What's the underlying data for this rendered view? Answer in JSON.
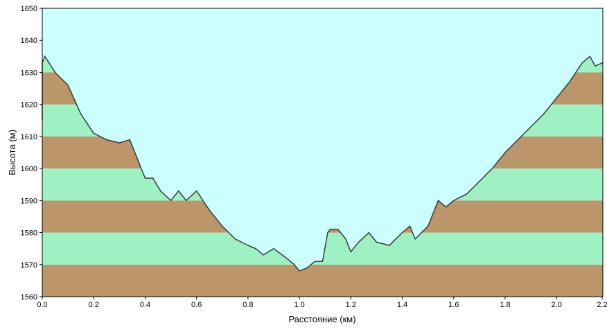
{
  "chart_data": {
    "type": "area",
    "title": "",
    "xlabel": "Расстояние  (км)",
    "ylabel": "Высота (м)",
    "xlim": [
      0,
      2.18
    ],
    "ylim": [
      1560,
      1650
    ],
    "x_ticks": [
      "0.0",
      "0.2",
      "0.4",
      "0.6",
      "0.8",
      "1.0",
      "1.2",
      "1.4",
      "1.6",
      "1.8",
      "2.0",
      "2.2"
    ],
    "y_ticks": [
      "1560",
      "1570",
      "1580",
      "1590",
      "1600",
      "1610",
      "1620",
      "1630",
      "1640",
      "1650"
    ],
    "grid": false,
    "legend": "none",
    "band_step": 10,
    "series": [
      {
        "x": [
          0.0,
          0.0,
          0.01,
          0.05,
          0.1,
          0.15,
          0.2,
          0.25,
          0.3,
          0.34,
          0.37,
          0.4,
          0.43,
          0.46,
          0.5,
          0.53,
          0.56,
          0.6,
          0.65,
          0.7,
          0.75,
          0.8,
          0.83,
          0.86,
          0.9,
          0.95,
          0.98,
          1.0,
          1.03,
          1.06,
          1.09,
          1.11,
          1.12,
          1.15,
          1.18,
          1.2,
          1.23,
          1.27,
          1.3,
          1.35,
          1.4,
          1.43,
          1.45,
          1.5,
          1.54,
          1.57,
          1.6,
          1.65,
          1.7,
          1.75,
          1.8,
          1.85,
          1.9,
          1.95,
          2.0,
          2.05,
          2.1,
          2.13,
          2.15,
          2.18
        ],
        "y": [
          1615,
          1633,
          1635,
          1630,
          1626,
          1617,
          1611,
          1609,
          1608,
          1609,
          1603,
          1597,
          1597,
          1593,
          1590,
          1593,
          1590,
          1593,
          1587,
          1582,
          1578,
          1576,
          1575,
          1573,
          1575,
          1572,
          1570,
          1568,
          1569,
          1571,
          1571,
          1580,
          1581,
          1581,
          1578,
          1574,
          1577,
          1580,
          1577,
          1576,
          1580,
          1582,
          1578,
          1582,
          1590,
          1588,
          1590,
          1592,
          1596,
          1600,
          1605,
          1609,
          1613,
          1617,
          1622,
          1627,
          1633,
          1635,
          1632,
          1633
        ]
      }
    ],
    "colors": {
      "sky": "#ccffff",
      "band_brown": "#bb966b",
      "band_green": "#9ff0c2",
      "profile_line": "#3a3a3a",
      "frame": "#000000"
    }
  }
}
